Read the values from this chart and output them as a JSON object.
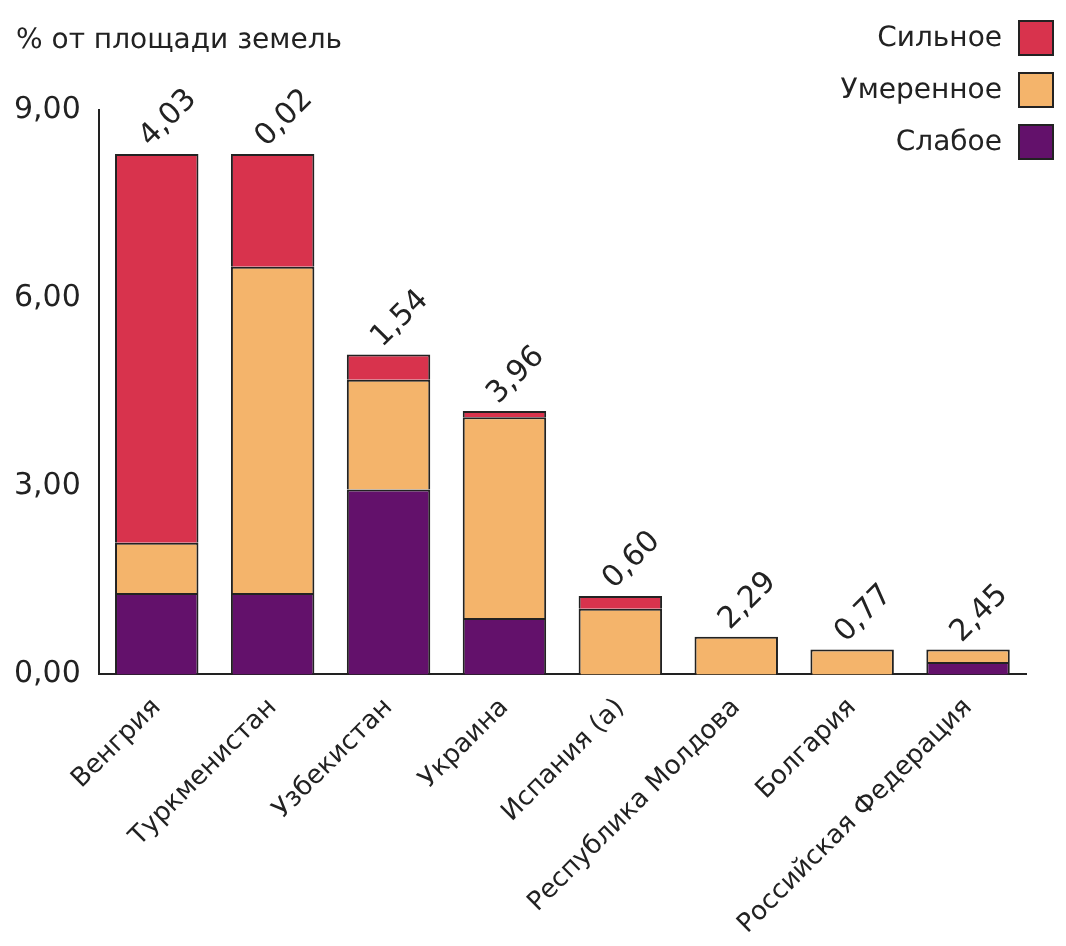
{
  "chart_data": {
    "type": "bar",
    "stacked": true,
    "ylabel": "% от площади земель",
    "categories": [
      "Венгрия",
      "Туркменистан",
      "Узбекистан",
      "Украина",
      "Испания (a)",
      "Республика Молдова",
      "Болгария",
      "Российская Федерация"
    ],
    "series": [
      {
        "name": "Слабое",
        "color": "#63116b",
        "values": [
          1.3,
          1.3,
          2.95,
          0.9,
          0,
          0,
          0,
          0.2
        ]
      },
      {
        "name": "Умеренное",
        "color": "#f4b46b",
        "values": [
          0.8,
          5.2,
          1.75,
          3.2,
          1.05,
          0.6,
          0.4,
          0.2
        ]
      },
      {
        "name": "Сильное",
        "color": "#d8334d",
        "values": [
          6.2,
          1.8,
          0.4,
          0.1,
          0.2,
          0,
          0,
          0
        ]
      }
    ],
    "ylim": [
      0,
      9
    ],
    "yticks": [
      {
        "value": 0,
        "label": "0,00"
      },
      {
        "value": 3,
        "label": "3,00"
      },
      {
        "value": 6,
        "label": "6,00"
      },
      {
        "value": 9,
        "label": "9,00"
      }
    ],
    "grid": false,
    "legend": "top right",
    "annotations": [
      {
        "text": "4,03",
        "x": "Венгрия",
        "y": 8.3
      },
      {
        "text": "0,02",
        "x": "Туркменистан",
        "y": 8.3
      },
      {
        "text": "1,54",
        "x": "Узбекистан",
        "y": 5.1
      },
      {
        "text": "3,96",
        "x": "Украина",
        "y": 4.2
      },
      {
        "text": "0,60",
        "x": "Испания (a)",
        "y": 1.25
      },
      {
        "text": "2,29",
        "x": "Республика Молдова",
        "y": 0.6
      },
      {
        "text": "0,77",
        "x": "Болгария",
        "y": 0.4
      },
      {
        "text": "2,45",
        "x": "Российская Федерация",
        "y": 0.4
      }
    ]
  }
}
